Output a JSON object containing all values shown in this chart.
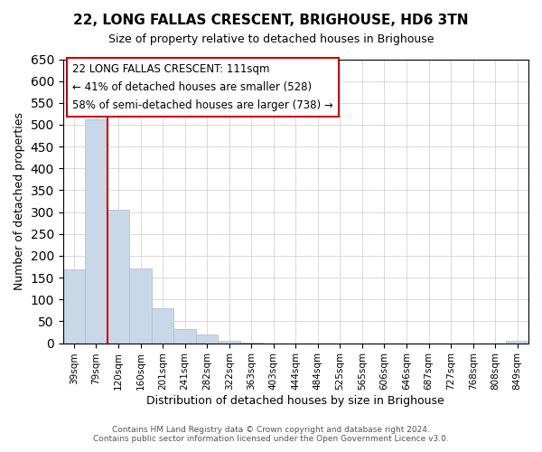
{
  "title": "22, LONG FALLAS CRESCENT, BRIGHOUSE, HD6 3TN",
  "subtitle": "Size of property relative to detached houses in Brighouse",
  "xlabel": "Distribution of detached houses by size in Brighouse",
  "ylabel": "Number of detached properties",
  "bar_labels": [
    "39sqm",
    "79sqm",
    "120sqm",
    "160sqm",
    "201sqm",
    "241sqm",
    "282sqm",
    "322sqm",
    "363sqm",
    "403sqm",
    "444sqm",
    "484sqm",
    "525sqm",
    "565sqm",
    "606sqm",
    "646sqm",
    "687sqm",
    "727sqm",
    "768sqm",
    "808sqm",
    "849sqm"
  ],
  "bar_values": [
    168,
    513,
    305,
    170,
    79,
    33,
    20,
    5,
    1,
    0,
    0,
    0,
    0,
    0,
    0,
    0,
    0,
    0,
    0,
    0,
    5
  ],
  "bar_color": "#c8d8e8",
  "bar_edge_color": "#aabbcc",
  "vline_color": "#cc0000",
  "vline_x_index": 2,
  "ylim": [
    0,
    650
  ],
  "yticks": [
    0,
    50,
    100,
    150,
    200,
    250,
    300,
    350,
    400,
    450,
    500,
    550,
    600,
    650
  ],
  "annotation_title": "22 LONG FALLAS CRESCENT: 111sqm",
  "annotation_line1": "← 41% of detached houses are smaller (528)",
  "annotation_line2": "58% of semi-detached houses are larger (738) →",
  "footer1": "Contains HM Land Registry data © Crown copyright and database right 2024.",
  "footer2": "Contains public sector information licensed under the Open Government Licence v3.0.",
  "background_color": "#ffffff",
  "grid_color": "#cccccc"
}
